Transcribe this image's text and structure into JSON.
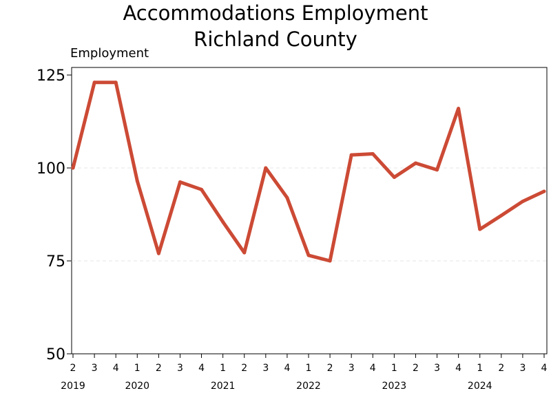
{
  "chart_data": {
    "type": "line",
    "title": [
      "Accommodations Employment",
      "Richland County"
    ],
    "ylabel": "Employment",
    "xlabel": "",
    "ylim": [
      50,
      125
    ],
    "yticks": [
      50,
      75,
      100,
      125
    ],
    "grid_y": [
      75,
      100
    ],
    "legend": "none",
    "x": [
      {
        "q": "2",
        "year": "2019"
      },
      {
        "q": "3",
        "year": ""
      },
      {
        "q": "4",
        "year": ""
      },
      {
        "q": "1",
        "year": "2020"
      },
      {
        "q": "2",
        "year": ""
      },
      {
        "q": "3",
        "year": ""
      },
      {
        "q": "4",
        "year": ""
      },
      {
        "q": "1",
        "year": "2021"
      },
      {
        "q": "2",
        "year": ""
      },
      {
        "q": "3",
        "year": ""
      },
      {
        "q": "4",
        "year": ""
      },
      {
        "q": "1",
        "year": "2022"
      },
      {
        "q": "2",
        "year": ""
      },
      {
        "q": "3",
        "year": ""
      },
      {
        "q": "4",
        "year": ""
      },
      {
        "q": "1",
        "year": "2023"
      },
      {
        "q": "2",
        "year": ""
      },
      {
        "q": "3",
        "year": ""
      },
      {
        "q": "4",
        "year": ""
      },
      {
        "q": "1",
        "year": "2024"
      },
      {
        "q": "2",
        "year": ""
      },
      {
        "q": "3",
        "year": ""
      },
      {
        "q": "4",
        "year": ""
      }
    ],
    "series": [
      {
        "color": "#cc4a35",
        "values": [
          100,
          123,
          123,
          96.5,
          77,
          96.2,
          94.2,
          85.5,
          77.2,
          100,
          92,
          76.5,
          75,
          103.5,
          103.8,
          97.5,
          101.3,
          99.5,
          116,
          83.5,
          87.2,
          91,
          93.7
        ]
      }
    ]
  }
}
